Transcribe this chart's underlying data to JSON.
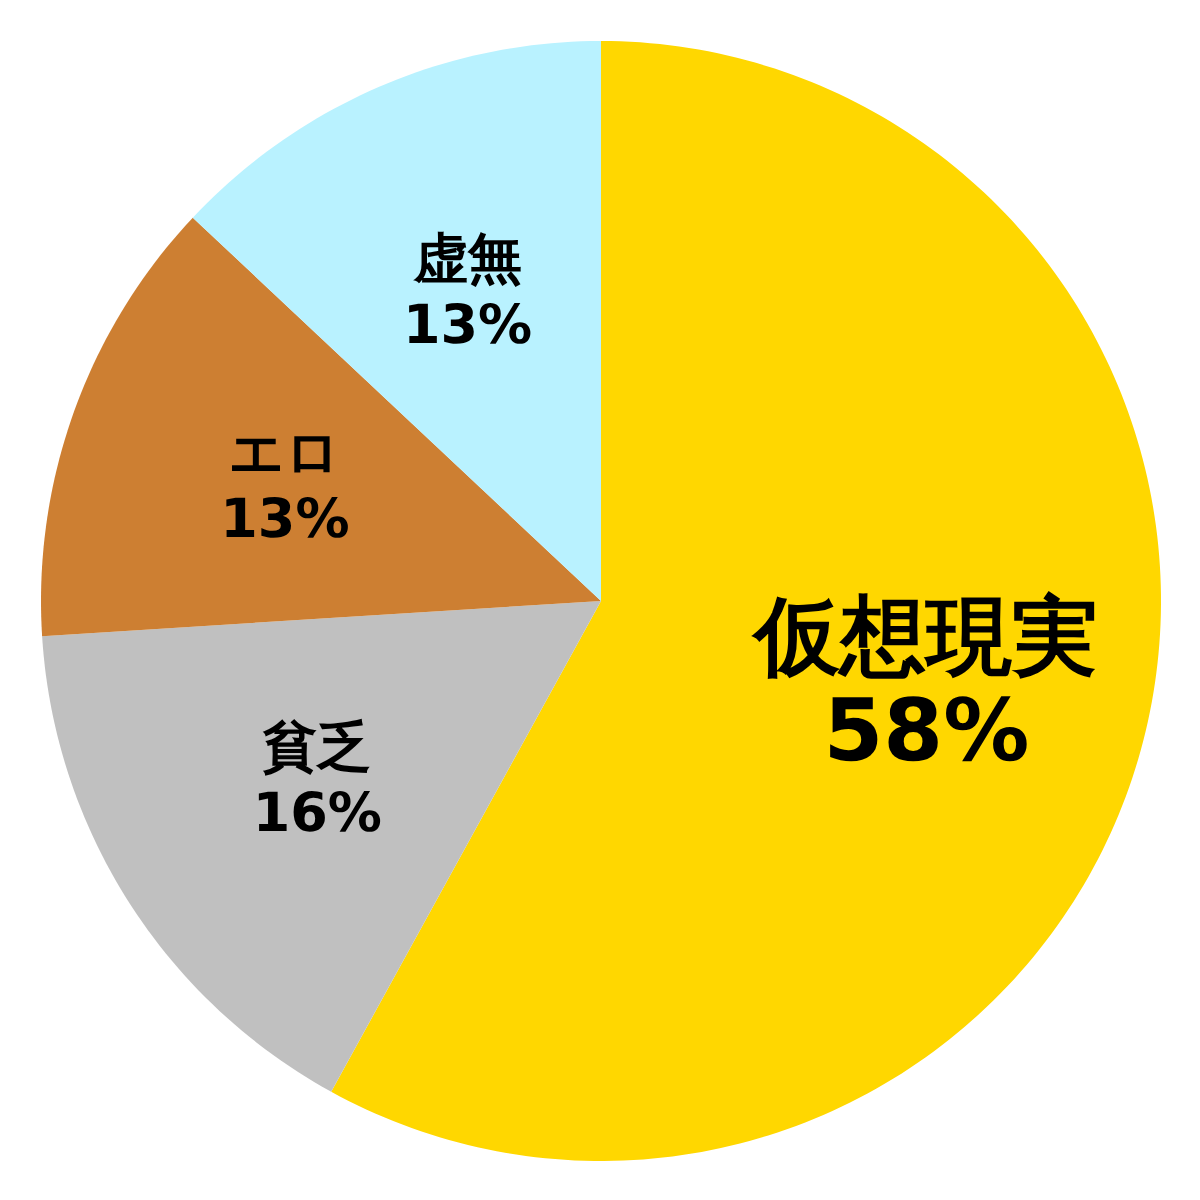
{
  "chart_data": {
    "type": "pie",
    "categories": [
      "仮想現実",
      "貧乏",
      "エロ",
      "虚無"
    ],
    "values": [
      58,
      16,
      13,
      13
    ],
    "value_labels": [
      "58%",
      "16%",
      "13%",
      "13%"
    ],
    "colors": [
      "#ffd700",
      "#c0c0c0",
      "#cd7f32",
      "#b9f2ff"
    ]
  }
}
